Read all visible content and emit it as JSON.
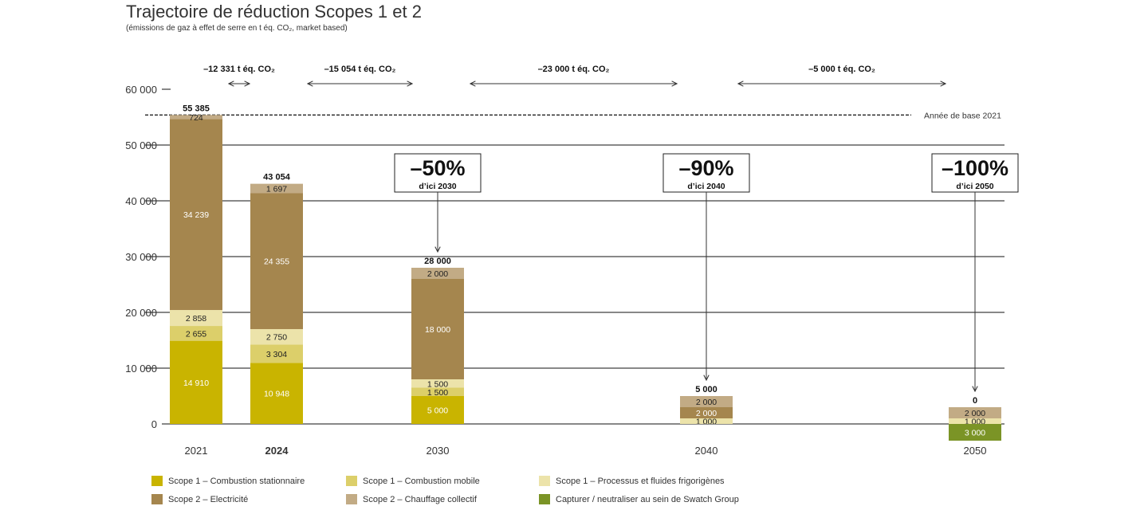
{
  "title": "Trajectoire de réduction Scopes 1 et 2",
  "subtitle": "(émissions de gaz à effet de serre en t éq. CO₂, market based)",
  "colors": {
    "s1_stationnaire": "#c9b400",
    "s1_mobile": "#dccf6a",
    "s1_processus": "#ece3aa",
    "s2_electricite": "#a5864e",
    "s2_chauffage": "#c2ab85",
    "capturer": "#7b9426"
  },
  "chart_data": {
    "type": "bar",
    "stacked": true,
    "categories": [
      "2021",
      "2024",
      "2030",
      "2040",
      "2050"
    ],
    "bold_categories": [
      "2024"
    ],
    "ylim": [
      0,
      60000
    ],
    "yticks": [
      0,
      10000,
      20000,
      30000,
      40000,
      50000,
      60000
    ],
    "ytick_labels": [
      "0",
      "10 000",
      "20 000",
      "30 000",
      "40 000",
      "50 000",
      "60 000"
    ],
    "grid": true,
    "series": [
      {
        "name": "Scope 1 – Combustion stationnaire",
        "key": "s1_stationnaire",
        "values": [
          14910,
          10948,
          5000,
          0,
          0
        ],
        "labels": [
          "14 910",
          "10 948",
          "5 000",
          "",
          ""
        ]
      },
      {
        "name": "Scope 1 – Combustion mobile",
        "key": "s1_mobile",
        "values": [
          2655,
          3304,
          1500,
          0,
          0
        ],
        "labels": [
          "2 655",
          "3 304",
          "1 500",
          "",
          ""
        ]
      },
      {
        "name": "Scope 1 – Processus et fluides frigorigènes",
        "key": "s1_processus",
        "values": [
          2858,
          2750,
          1500,
          1000,
          1000
        ],
        "labels": [
          "2 858",
          "2 750",
          "1 500",
          "1 000",
          "1 000"
        ]
      },
      {
        "name": "Scope 2 – Electricité",
        "key": "s2_electricite",
        "values": [
          34239,
          24355,
          18000,
          2000,
          0
        ],
        "labels": [
          "34 239",
          "24 355",
          "18 000",
          "2 000",
          ""
        ]
      },
      {
        "name": "Scope 2 – Chauffage collectif",
        "key": "s2_chauffage",
        "values": [
          724,
          1697,
          2000,
          2000,
          2000
        ],
        "labels": [
          "724",
          "1 697",
          "2 000",
          "2 000",
          "2 000"
        ]
      },
      {
        "name": "Capturer / neutraliser au sein de Swatch Group",
        "key": "capturer",
        "values": [
          0,
          0,
          0,
          0,
          -3000
        ],
        "labels": [
          "",
          "",
          "",
          "",
          "3 000"
        ]
      }
    ],
    "totals": [
      "55 385",
      "43 054",
      "28 000",
      "5 000",
      "0"
    ],
    "baseline": {
      "value": 55385,
      "label": "Année de base 2021"
    },
    "reduction_arrows": [
      {
        "label": "–12 331 t éq. CO₂",
        "from": "2021",
        "to": "2024"
      },
      {
        "label": "–15 054 t éq. CO₂",
        "from": "2024",
        "to": "2030"
      },
      {
        "label": "–23 000 t éq. CO₂",
        "from": "2030",
        "to": "2040"
      },
      {
        "label": "–5 000 t éq. CO₂",
        "from": "2040",
        "to": "2050"
      }
    ],
    "targets": [
      {
        "category": "2030",
        "percent": "–50%",
        "label": "d’ici 2030"
      },
      {
        "category": "2040",
        "percent": "–90%",
        "label": "d’ici 2040"
      },
      {
        "category": "2050",
        "percent": "–100%",
        "label": "d’ici 2050"
      }
    ]
  },
  "legend": [
    {
      "key": "s1_stationnaire",
      "label": "Scope 1 – Combustion stationnaire"
    },
    {
      "key": "s1_mobile",
      "label": "Scope 1 – Combustion mobile"
    },
    {
      "key": "s1_processus",
      "label": "Scope 1 – Processus et fluides frigorigènes"
    },
    {
      "key": "s2_electricite",
      "label": "Scope 2 – Electricité"
    },
    {
      "key": "s2_chauffage",
      "label": "Scope 2 – Chauffage collectif"
    },
    {
      "key": "capturer",
      "label": "Capturer / neutraliser au sein de Swatch Group"
    }
  ]
}
